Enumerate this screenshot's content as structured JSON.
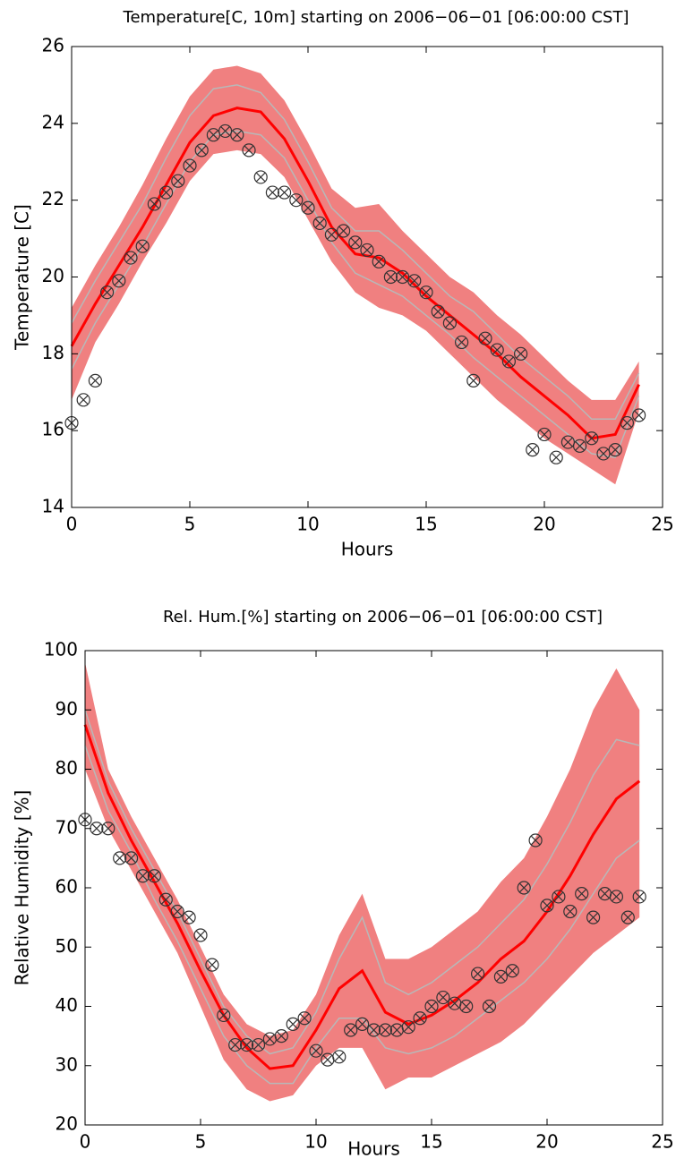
{
  "chart_data": [
    {
      "type": "line",
      "title": "Temperature[C, 10m] starting on 2006−06−01 [06:00:00 CST]",
      "xlabel": "Hours",
      "ylabel": "Temperature [C]",
      "xlim": [
        0,
        25
      ],
      "xticks": [
        0,
        5,
        10,
        15,
        20,
        25
      ],
      "ylim": [
        14,
        26
      ],
      "yticks": [
        14,
        16,
        18,
        20,
        22,
        24,
        26
      ],
      "band_color": "#f08080",
      "member_color": "#b8b8b8",
      "mean_color": "#ff0000",
      "obs_color": "#333333",
      "x": [
        0,
        1,
        2,
        3,
        4,
        5,
        6,
        7,
        8,
        9,
        10,
        11,
        12,
        13,
        14,
        15,
        16,
        17,
        18,
        19,
        20,
        21,
        22,
        23,
        24
      ],
      "band_upper": [
        19.2,
        20.3,
        21.3,
        22.4,
        23.6,
        24.7,
        25.4,
        25.5,
        25.3,
        24.6,
        23.5,
        22.3,
        21.8,
        21.9,
        21.2,
        20.6,
        20.0,
        19.6,
        19.0,
        18.5,
        17.9,
        17.3,
        16.8,
        16.8,
        17.8
      ],
      "band_lower": [
        16.8,
        18.3,
        19.3,
        20.4,
        21.4,
        22.5,
        23.2,
        23.3,
        23.2,
        22.6,
        21.5,
        20.4,
        19.6,
        19.2,
        19.0,
        18.6,
        18.0,
        17.4,
        16.8,
        16.3,
        15.8,
        15.4,
        15.0,
        14.6,
        16.5
      ],
      "members": [
        [
          18.8,
          19.9,
          20.9,
          21.9,
          23.1,
          24.2,
          24.9,
          25.0,
          24.8,
          24.1,
          23.0,
          21.8,
          21.2,
          21.2,
          20.7,
          20.1,
          19.5,
          19.1,
          18.5,
          17.9,
          17.4,
          16.9,
          16.3,
          16.3,
          17.5
        ],
        [
          17.6,
          18.8,
          19.8,
          20.8,
          21.9,
          23.0,
          23.7,
          23.8,
          23.7,
          23.1,
          22.0,
          20.9,
          20.1,
          19.8,
          19.5,
          19.0,
          18.5,
          17.9,
          17.4,
          16.9,
          16.4,
          15.9,
          15.4,
          15.3,
          16.9
        ]
      ],
      "mean": [
        18.2,
        19.3,
        20.3,
        21.3,
        22.4,
        23.5,
        24.2,
        24.4,
        24.3,
        23.6,
        22.5,
        21.3,
        20.6,
        20.5,
        20.1,
        19.5,
        19.0,
        18.5,
        18.0,
        17.4,
        16.9,
        16.4,
        15.8,
        15.9,
        17.2
      ],
      "obs_x": [
        0,
        0.5,
        1,
        1.5,
        2,
        2.5,
        3,
        3.5,
        4,
        4.5,
        5,
        5.5,
        6,
        6.5,
        7,
        7.5,
        8,
        8.5,
        9,
        9.5,
        10,
        10.5,
        11,
        11.5,
        12,
        12.5,
        13,
        13.5,
        14,
        14.5,
        15,
        15.5,
        16,
        16.5,
        17,
        17.5,
        18,
        18.5,
        19,
        19.5,
        20,
        20.5,
        21,
        21.5,
        22,
        22.5,
        23,
        23.5,
        24
      ],
      "obs_y": [
        16.2,
        16.8,
        17.3,
        19.6,
        19.9,
        20.5,
        20.8,
        21.9,
        22.2,
        22.5,
        22.9,
        23.3,
        23.7,
        23.8,
        23.7,
        23.3,
        22.6,
        22.2,
        22.2,
        22.0,
        21.8,
        21.4,
        21.1,
        21.2,
        20.9,
        20.7,
        20.4,
        20.0,
        20.0,
        19.9,
        19.6,
        19.1,
        18.8,
        18.3,
        17.3,
        18.4,
        18.1,
        17.8,
        18.0,
        15.5,
        15.9,
        15.3,
        15.7,
        15.6,
        15.8,
        15.4,
        15.5,
        16.2,
        16.4
      ]
    },
    {
      "type": "line",
      "title": "Rel. Hum.[%] starting on 2006−06−01 [06:00:00 CST]",
      "xlabel": "Hours",
      "ylabel": "Relative Humidity [%]",
      "xlim": [
        0,
        25
      ],
      "xticks": [
        0,
        5,
        10,
        15,
        20,
        25
      ],
      "ylim": [
        20,
        100
      ],
      "yticks": [
        20,
        30,
        40,
        50,
        60,
        70,
        80,
        90,
        100
      ],
      "band_color": "#f08080",
      "member_color": "#b8b8b8",
      "mean_color": "#ff0000",
      "obs_color": "#333333",
      "x": [
        0,
        1,
        2,
        3,
        4,
        5,
        6,
        7,
        8,
        9,
        10,
        11,
        12,
        13,
        14,
        15,
        16,
        17,
        18,
        19,
        20,
        21,
        22,
        23,
        24
      ],
      "band_upper": [
        98,
        80,
        72,
        65,
        58,
        50,
        42,
        37,
        35,
        36,
        42,
        52,
        59,
        48,
        48,
        50,
        53,
        56,
        61,
        65,
        72,
        80,
        90,
        97,
        90
      ],
      "band_lower": [
        80,
        70,
        63,
        56,
        49,
        40,
        31,
        26,
        24,
        25,
        30,
        33,
        33,
        26,
        28,
        28,
        30,
        32,
        34,
        37,
        41,
        45,
        49,
        52,
        55
      ],
      "members": [
        [
          90,
          78,
          70,
          63,
          56,
          48,
          40,
          35,
          32,
          33,
          39,
          48,
          55,
          44,
          42,
          44,
          47,
          50,
          54,
          58,
          64,
          71,
          79,
          85,
          84
        ],
        [
          84,
          73,
          66,
          58,
          51,
          43,
          35,
          30,
          27,
          27,
          33,
          38,
          38,
          33,
          32,
          33,
          35,
          38,
          41,
          44,
          48,
          53,
          59,
          65,
          68
        ]
      ],
      "mean": [
        87.5,
        76,
        68,
        61,
        54,
        46,
        38.5,
        33,
        29.5,
        30,
        36,
        43,
        46,
        39,
        37,
        38.5,
        41,
        44,
        48,
        51,
        56,
        62,
        69,
        75,
        78
      ],
      "obs_x": [
        0,
        0.5,
        1,
        1.5,
        2,
        2.5,
        3,
        3.5,
        4,
        4.5,
        5,
        5.5,
        6,
        6.5,
        7,
        7.5,
        8,
        8.5,
        9,
        9.5,
        10,
        10.5,
        11,
        11.5,
        12,
        12.5,
        13,
        13.5,
        14,
        14.5,
        15,
        15.5,
        16,
        16.5,
        17,
        17.5,
        18,
        18.5,
        19,
        19.5,
        20,
        20.5,
        21,
        21.5,
        22,
        22.5,
        23,
        23.5,
        24
      ],
      "obs_y": [
        71.5,
        70,
        70,
        65,
        65,
        62,
        62,
        58,
        56,
        55,
        52,
        47,
        38.5,
        33.5,
        33.5,
        33.5,
        34.5,
        35,
        37,
        38,
        32.5,
        31,
        31.5,
        36,
        37,
        36,
        36,
        36,
        36.5,
        38,
        40,
        41.5,
        40.5,
        40,
        45.5,
        40,
        45,
        46,
        60,
        68,
        57,
        58.5,
        56,
        59,
        55,
        59,
        58.5,
        55,
        58.5
      ]
    }
  ]
}
